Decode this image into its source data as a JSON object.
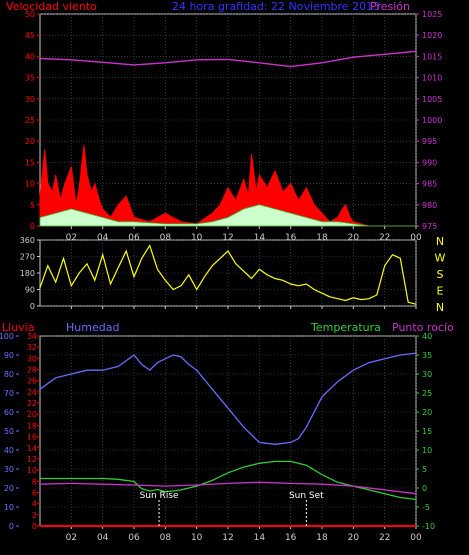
{
  "header": {
    "wind_label": "Velocidad viento",
    "title": "24 hora grafidad: 22 Noviembre 2013",
    "pressure_label": "Presión"
  },
  "compass": [
    "N",
    "W",
    "S",
    "E",
    "N"
  ],
  "lower_labels": {
    "rain": "Lluvia",
    "humidity": "Humedad",
    "temperature": "Temperatura",
    "dew": "Punto rocío",
    "sun_rise": "Sun Rise",
    "sun_set": "Sun Set"
  },
  "colors": {
    "wind": "#ff0000",
    "gust_fill": "#ff0000",
    "wind_avg": "#ccffcc",
    "pressure": "#cc33cc",
    "direction": "#ffff00",
    "humidity": "#6a6aff",
    "temperature": "#33cc33",
    "dew": "#cc33cc",
    "rain": "#ff0000",
    "axis": "#cccccc"
  },
  "chart_data": [
    {
      "type": "area",
      "x_ticks": [
        "02",
        "04",
        "06",
        "08",
        "10",
        "12",
        "14",
        "16",
        "18",
        "20",
        "22",
        "00"
      ],
      "y_left": {
        "ticks": [
          0,
          5,
          10,
          15,
          20,
          25,
          30,
          35,
          40,
          45,
          50
        ],
        "range": [
          0,
          50
        ]
      },
      "y_right": {
        "ticks": [
          975,
          980,
          985,
          990,
          995,
          1000,
          1005,
          1010,
          1015,
          1020,
          1025
        ],
        "range": [
          975,
          1025
        ]
      },
      "grid": true,
      "series": [
        {
          "name": "Velocidad viento",
          "axis": "left",
          "x": [
            0.0,
            0.3,
            0.5,
            0.8,
            1.0,
            1.3,
            1.5,
            2.0,
            2.3,
            2.5,
            2.8,
            3.0,
            3.3,
            3.5,
            3.8,
            4.0,
            4.5,
            5.0,
            5.5,
            6.0,
            7.0,
            8.0,
            9.0,
            10.0,
            11.0,
            11.5,
            12.0,
            12.5,
            13.0,
            13.3,
            13.5,
            13.8,
            14.0,
            14.5,
            15.0,
            15.5,
            16.0,
            16.5,
            17.0,
            17.5,
            18.0,
            18.5,
            19.0,
            19.3,
            19.5,
            19.8,
            20.0,
            21.0,
            22.0,
            23.0,
            24.0
          ],
          "y": [
            7,
            18,
            10,
            8,
            12,
            6,
            9,
            14,
            5,
            9,
            19,
            12,
            8,
            10,
            6,
            4,
            2,
            5,
            7,
            2,
            1,
            3,
            1,
            0.5,
            3,
            5,
            9,
            6,
            11,
            7,
            17,
            8,
            12,
            9,
            13,
            8,
            10,
            6,
            9,
            5,
            3,
            1,
            2,
            4,
            5,
            2,
            1,
            0,
            0,
            0,
            0
          ]
        },
        {
          "name": "wind_avg",
          "axis": "left",
          "x": [
            0,
            1,
            2,
            3,
            4,
            5,
            6,
            8,
            10,
            11,
            12,
            13,
            14,
            15,
            16,
            17,
            18,
            19,
            20,
            21,
            24
          ],
          "y": [
            2,
            3,
            4,
            3,
            2,
            1,
            1,
            0.5,
            0.5,
            1,
            2,
            4,
            5,
            4,
            3,
            2,
            1,
            1,
            0.5,
            0,
            0
          ]
        },
        {
          "name": "Presión",
          "axis": "right",
          "x": [
            0,
            2,
            4,
            6,
            8,
            10,
            12,
            14,
            16,
            18,
            20,
            22,
            24
          ],
          "y": [
            1014.5,
            1014.2,
            1013.6,
            1013.0,
            1013.5,
            1014.2,
            1014.3,
            1013.5,
            1012.6,
            1013.5,
            1014.8,
            1015.5,
            1016.2
          ]
        }
      ]
    },
    {
      "type": "line",
      "x_ticks": [
        "02",
        "04",
        "06",
        "08",
        "10",
        "12",
        "14",
        "16",
        "18",
        "20",
        "22",
        "00"
      ],
      "y_left": {
        "ticks": [
          0,
          90,
          180,
          270,
          360
        ],
        "range": [
          0,
          360
        ]
      },
      "series": [
        {
          "name": "direction",
          "x": [
            0,
            0.5,
            1,
            1.5,
            2,
            2.5,
            3,
            3.5,
            4,
            4.5,
            5,
            5.5,
            6,
            6.5,
            7,
            7.5,
            8,
            8.5,
            9,
            9.5,
            10,
            10.5,
            11,
            11.5,
            12,
            12.5,
            13,
            13.5,
            14,
            14.5,
            15,
            15.5,
            16,
            16.5,
            17,
            17.5,
            18,
            18.5,
            19,
            19.5,
            20,
            20.5,
            21,
            21.5,
            22,
            22.5,
            23,
            23.5,
            24
          ],
          "y": [
            100,
            220,
            130,
            260,
            110,
            180,
            230,
            140,
            280,
            120,
            210,
            300,
            160,
            260,
            330,
            200,
            140,
            90,
            110,
            170,
            90,
            160,
            220,
            260,
            300,
            230,
            190,
            150,
            200,
            170,
            150,
            140,
            120,
            110,
            120,
            90,
            70,
            50,
            40,
            30,
            45,
            35,
            40,
            60,
            220,
            280,
            260,
            20,
            10
          ]
        }
      ]
    },
    {
      "type": "line",
      "x_ticks": [
        "02",
        "04",
        "06",
        "08",
        "10",
        "12",
        "14",
        "16",
        "18",
        "20",
        "22",
        "00"
      ],
      "y_left": {
        "name": "Humedad",
        "ticks": [
          0,
          10,
          20,
          30,
          40,
          50,
          60,
          70,
          80,
          90,
          100
        ],
        "range": [
          0,
          100
        ]
      },
      "y_left2": {
        "name": "Lluvia",
        "ticks": [
          0,
          2,
          4,
          6,
          8,
          10,
          12,
          14,
          16,
          18,
          20,
          22,
          24,
          26,
          28,
          30,
          32,
          34
        ],
        "range": [
          0,
          34
        ]
      },
      "y_right": {
        "ticks": [
          -10,
          -5,
          0,
          5,
          10,
          15,
          20,
          25,
          30,
          35,
          40
        ],
        "range": [
          -10,
          40
        ]
      },
      "grid": true,
      "series": [
        {
          "name": "Humedad",
          "axis": "left",
          "x": [
            0,
            1,
            2,
            3,
            4,
            5,
            6,
            6.5,
            7,
            7.5,
            8,
            8.5,
            9,
            9.5,
            10,
            11,
            12,
            13,
            14,
            15,
            16,
            16.5,
            17,
            17.5,
            18,
            19,
            20,
            21,
            22,
            23,
            24
          ],
          "y": [
            72,
            78,
            80,
            82,
            82,
            84,
            90,
            85,
            82,
            86,
            88,
            90,
            89,
            85,
            82,
            72,
            62,
            52,
            44,
            43,
            44,
            46,
            52,
            60,
            68,
            76,
            82,
            86,
            88,
            90,
            91
          ]
        },
        {
          "name": "Temperatura",
          "axis": "right",
          "x": [
            0,
            1,
            2,
            3,
            4,
            5,
            6,
            6.5,
            7,
            7.5,
            8,
            8.5,
            9,
            10,
            11,
            12,
            13,
            14,
            15,
            16,
            17,
            18,
            19,
            20,
            21,
            22,
            23,
            24
          ],
          "y": [
            2.5,
            2.5,
            2.5,
            2.5,
            2.5,
            2.3,
            1.7,
            -0.2,
            -0.8,
            -0.4,
            -1.0,
            -0.8,
            -0.5,
            0.5,
            2.0,
            4.0,
            5.5,
            6.5,
            7.0,
            7.0,
            6.0,
            3.5,
            1.5,
            0.5,
            -0.5,
            -1.5,
            -2.5,
            -3.0
          ]
        },
        {
          "name": "Punto rocío",
          "axis": "right",
          "x": [
            0,
            2,
            4,
            6,
            8,
            10,
            12,
            14,
            16,
            18,
            20,
            22,
            24
          ],
          "y": [
            1.0,
            1.2,
            1.0,
            0.8,
            0.5,
            0.8,
            1.2,
            1.5,
            1.2,
            1.0,
            0.5,
            -0.5,
            -1.5
          ]
        },
        {
          "name": "Lluvia",
          "axis": "left2",
          "x": [
            0,
            24
          ],
          "y": [
            0,
            0
          ]
        }
      ],
      "markers": [
        {
          "label": "Sun Rise",
          "x": 7.6
        },
        {
          "label": "Sun Set",
          "x": 17.0
        }
      ]
    }
  ]
}
